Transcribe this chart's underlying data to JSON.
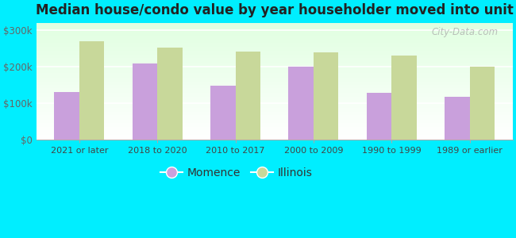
{
  "title": "Median house/condo value by year householder moved into unit",
  "categories": [
    "2021 or later",
    "2018 to 2020",
    "2010 to 2017",
    "2000 to 2009",
    "1990 to 1999",
    "1989 or earlier"
  ],
  "momence_values": [
    130000,
    210000,
    148000,
    200000,
    128000,
    118000
  ],
  "illinois_values": [
    270000,
    252000,
    242000,
    240000,
    230000,
    200000
  ],
  "momence_color": "#c9a0dc",
  "illinois_color": "#c8d89a",
  "background_color": "#00eeff",
  "yticks": [
    0,
    100000,
    200000,
    300000
  ],
  "ytick_labels": [
    "$0",
    "$100k",
    "$200k",
    "$300k"
  ],
  "ylim": [
    0,
    320000
  ],
  "bar_width": 0.32,
  "legend_momence": "Momence",
  "legend_illinois": "Illinois",
  "watermark": "City-Data.com"
}
